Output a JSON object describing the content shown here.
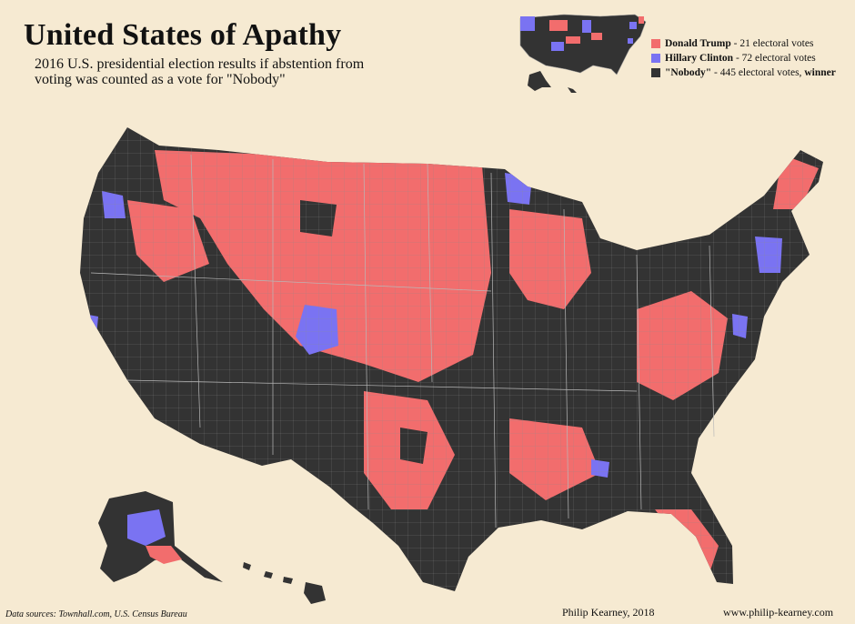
{
  "header": {
    "title": "United States of Apathy",
    "subtitle": "2016 U.S. presidential election results if abstention from voting was counted as a vote for \"Nobody\""
  },
  "legend": {
    "items": [
      {
        "name": "Donald Trump",
        "detail": " - 21 electoral votes",
        "color": "#f26d6d"
      },
      {
        "name": "Hillary Clinton",
        "detail": " - 72 electoral votes",
        "color": "#7a73f2"
      },
      {
        "name": "\"Nobody\"",
        "detail": " - 445 electoral votes, ",
        "winner": "winner",
        "color": "#333333"
      }
    ]
  },
  "footer": {
    "sources": "Data sources:  Townhall.com, U.S. Census Bureau",
    "author": "Philip Kearney, 2018",
    "website": "www.philip-kearney.com"
  },
  "colors": {
    "background": "#f6ead2",
    "trump": "#f26d6d",
    "clinton": "#7a73f2",
    "nobody": "#333333",
    "border": "#a8a8a8"
  }
}
